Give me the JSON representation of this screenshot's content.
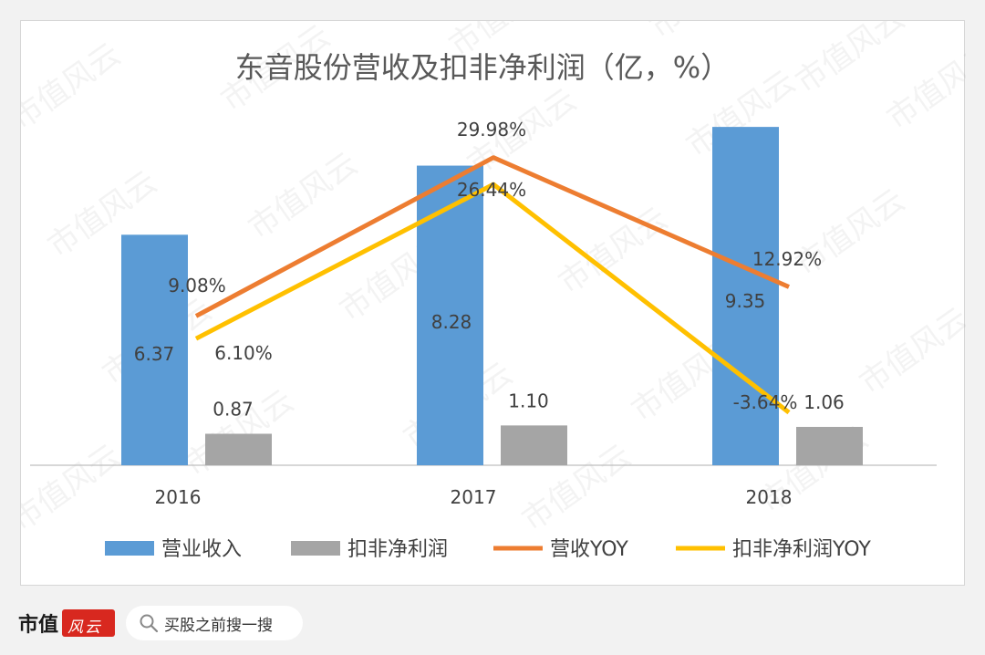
{
  "chart_data": {
    "type": "bar",
    "title": "东音股份营收及扣非净利润（亿，%）",
    "categories": [
      "2016",
      "2017",
      "2018"
    ],
    "series": [
      {
        "name": "营业收入",
        "kind": "bar",
        "axis": "left",
        "color": "#5b9bd5",
        "values": [
          6.37,
          8.28,
          9.35
        ],
        "labels": [
          "6.37",
          "8.28",
          "9.35"
        ]
      },
      {
        "name": "扣非净利润",
        "kind": "bar",
        "axis": "left",
        "color": "#a5a5a5",
        "values": [
          0.87,
          1.1,
          1.06
        ],
        "labels": [
          "0.87",
          "1.10",
          "1.06"
        ]
      },
      {
        "name": "营收YOY",
        "kind": "line",
        "axis": "right",
        "color": "#ed7d31",
        "values": [
          9.08,
          29.98,
          12.92
        ],
        "labels": [
          "9.08%",
          "29.98%",
          "12.92%"
        ]
      },
      {
        "name": "扣非净利润YOY",
        "kind": "line",
        "axis": "right",
        "color": "#ffc000",
        "values": [
          6.1,
          26.44,
          -3.64
        ],
        "labels": [
          "6.10%",
          "26.44%",
          "-3.64%"
        ]
      }
    ],
    "legend_position": "bottom",
    "grid": false
  },
  "watermark": "市值风云",
  "footer": {
    "brand": "市值",
    "brand_seal": "风云",
    "search_placeholder": "买股之前搜一搜"
  }
}
